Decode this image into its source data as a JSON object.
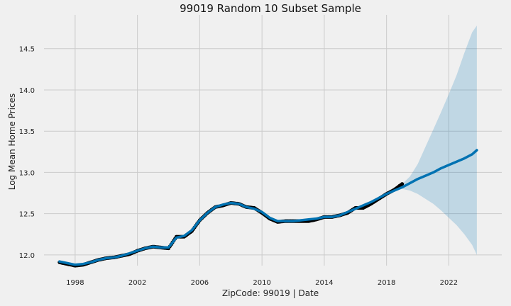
{
  "chart_data": {
    "type": "line",
    "title": "99019 Random 10 Subset Sample",
    "xlabel": "ZipCode: 99019 | Date",
    "ylabel": "Log Mean Home Prices",
    "xlim": [
      1996.0,
      2025.4
    ],
    "ylim": [
      11.87,
      14.91
    ],
    "x_ticks": [
      1998,
      2002,
      2006,
      2010,
      2014,
      2018,
      2022
    ],
    "x_tick_labels": [
      "1998",
      "2002",
      "2006",
      "2010",
      "2014",
      "2018",
      "2022"
    ],
    "y_ticks": [
      12.0,
      12.5,
      13.0,
      13.5,
      14.0,
      14.5
    ],
    "y_tick_labels": [
      "12.0",
      "12.5",
      "13.0",
      "13.5",
      "14.0",
      "14.5"
    ],
    "grid": true,
    "colors": {
      "observed": "#000000",
      "forecast": "#0072b2",
      "interval": "#0072b2",
      "background": "#f0f0f0",
      "grid": "#cbcbcb"
    },
    "series": [
      {
        "role": "observed",
        "x": [
          1997.0,
          1997.5,
          1998.0,
          1998.5,
          1999.0,
          1999.5,
          2000.0,
          2000.5,
          2001.0,
          2001.5,
          2002.0,
          2002.5,
          2003.0,
          2003.5,
          2004.0,
          2004.5,
          2005.0,
          2005.5,
          2006.0,
          2006.5,
          2007.0,
          2007.5,
          2008.0,
          2008.5,
          2009.0,
          2009.5,
          2010.0,
          2010.5,
          2011.0,
          2011.5,
          2012.0,
          2012.5,
          2013.0,
          2013.5,
          2014.0,
          2014.5,
          2015.0,
          2015.5,
          2016.0,
          2016.5,
          2017.0,
          2017.5,
          2018.0,
          2018.5,
          2019.0
        ],
        "values": [
          11.91,
          11.89,
          11.87,
          11.88,
          11.91,
          11.94,
          11.96,
          11.97,
          11.99,
          12.01,
          12.05,
          12.08,
          12.1,
          12.09,
          12.08,
          12.22,
          12.22,
          12.29,
          12.42,
          12.51,
          12.58,
          12.6,
          12.63,
          12.62,
          12.58,
          12.57,
          12.51,
          12.44,
          12.4,
          12.41,
          12.41,
          12.41,
          12.41,
          12.43,
          12.46,
          12.46,
          12.48,
          12.51,
          12.57,
          12.57,
          12.62,
          12.68,
          12.74,
          12.79,
          12.86
        ]
      },
      {
        "role": "forecast",
        "x": [
          1997.0,
          1997.5,
          1998.0,
          1998.5,
          1999.0,
          1999.5,
          2000.0,
          2000.5,
          2001.0,
          2001.5,
          2002.0,
          2002.5,
          2003.0,
          2003.5,
          2004.0,
          2004.5,
          2005.0,
          2005.5,
          2006.0,
          2006.5,
          2007.0,
          2007.5,
          2008.0,
          2008.5,
          2009.0,
          2009.5,
          2010.0,
          2010.5,
          2011.0,
          2011.5,
          2012.0,
          2012.5,
          2013.0,
          2013.5,
          2014.0,
          2014.5,
          2015.0,
          2015.5,
          2016.0,
          2016.5,
          2017.0,
          2017.5,
          2018.0,
          2018.5,
          2019.0,
          2019.5,
          2020.0,
          2020.5,
          2021.0,
          2021.5,
          2022.0,
          2022.5,
          2023.0,
          2023.5,
          2023.8
        ],
        "values": [
          11.92,
          11.9,
          11.88,
          11.89,
          11.91,
          11.94,
          11.96,
          11.97,
          11.99,
          12.02,
          12.05,
          12.08,
          12.1,
          12.09,
          12.09,
          12.21,
          12.23,
          12.3,
          12.42,
          12.51,
          12.58,
          12.61,
          12.63,
          12.62,
          12.58,
          12.56,
          12.52,
          12.45,
          12.41,
          12.41,
          12.41,
          12.42,
          12.43,
          12.44,
          12.46,
          12.46,
          12.48,
          12.52,
          12.56,
          12.6,
          12.64,
          12.69,
          12.74,
          12.78,
          12.82,
          12.87,
          12.92,
          12.96,
          13.0,
          13.05,
          13.09,
          13.13,
          13.17,
          13.22,
          13.27
        ]
      }
    ],
    "interval": {
      "x": [
        2019.0,
        2019.5,
        2020.0,
        2020.5,
        2021.0,
        2021.5,
        2022.0,
        2022.5,
        2023.0,
        2023.5,
        2023.8
      ],
      "lower": [
        12.8,
        12.78,
        12.74,
        12.68,
        12.62,
        12.54,
        12.45,
        12.36,
        12.25,
        12.12,
        12.0
      ],
      "upper": [
        12.86,
        12.95,
        13.1,
        13.31,
        13.52,
        13.73,
        13.95,
        14.18,
        14.45,
        14.7,
        14.78
      ]
    }
  }
}
